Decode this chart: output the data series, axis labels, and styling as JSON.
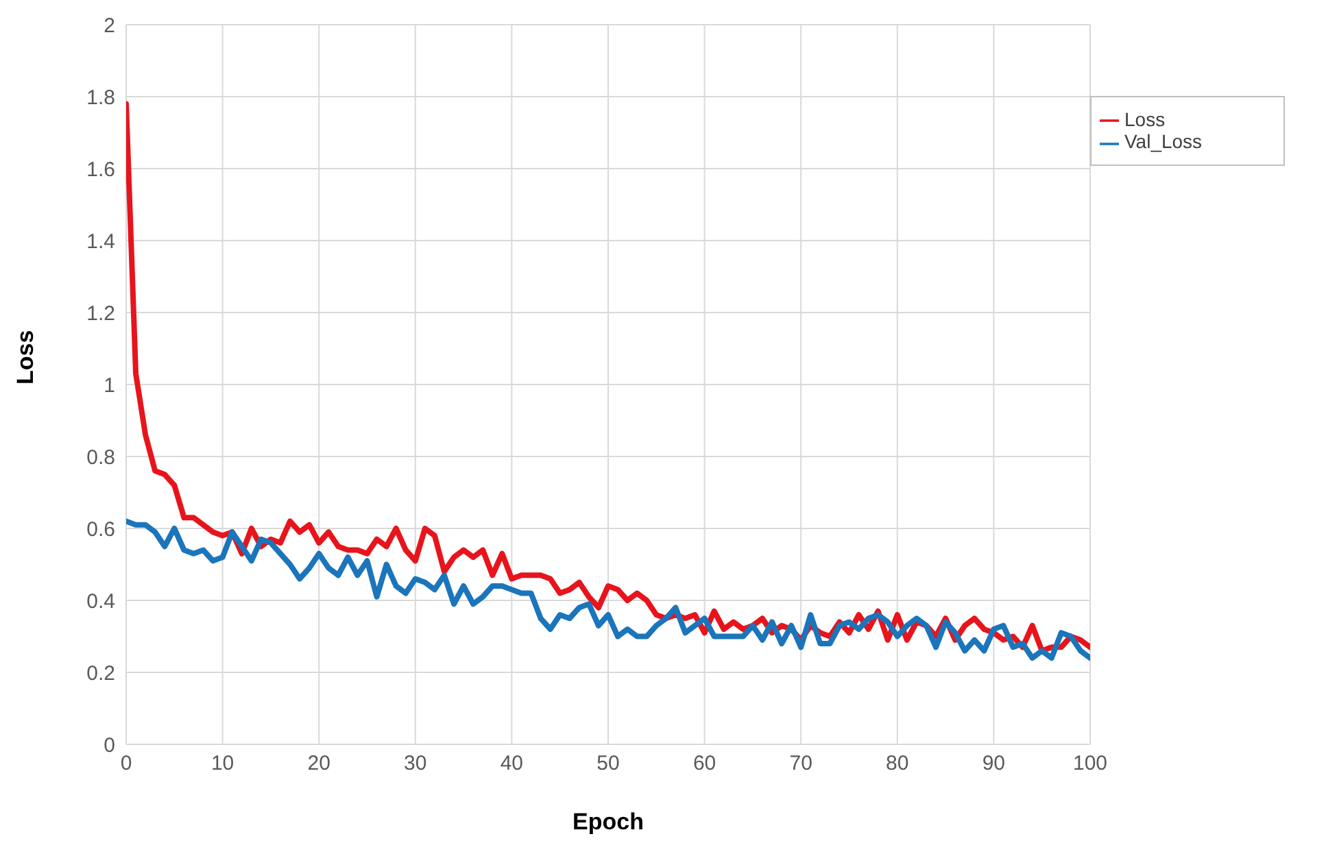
{
  "chart_data": {
    "type": "line",
    "xlabel": "Epoch",
    "ylabel": "Loss",
    "x": [
      0,
      1,
      2,
      3,
      4,
      5,
      6,
      7,
      8,
      9,
      10,
      11,
      12,
      13,
      14,
      15,
      16,
      17,
      18,
      19,
      20,
      21,
      22,
      23,
      24,
      25,
      26,
      27,
      28,
      29,
      30,
      31,
      32,
      33,
      34,
      35,
      36,
      37,
      38,
      39,
      40,
      41,
      42,
      43,
      44,
      45,
      46,
      47,
      48,
      49,
      50,
      51,
      52,
      53,
      54,
      55,
      56,
      57,
      58,
      59,
      60,
      61,
      62,
      63,
      64,
      65,
      66,
      67,
      68,
      69,
      70,
      71,
      72,
      73,
      74,
      75,
      76,
      77,
      78,
      79,
      80,
      81,
      82,
      83,
      84,
      85,
      86,
      87,
      88,
      89,
      90,
      91,
      92,
      93,
      94,
      95,
      96,
      97,
      98,
      99,
      100
    ],
    "series": [
      {
        "name": "Loss",
        "color": "#e8141c",
        "values": [
          1.78,
          1.03,
          0.86,
          0.76,
          0.75,
          0.72,
          0.63,
          0.63,
          0.61,
          0.59,
          0.58,
          0.59,
          0.53,
          0.6,
          0.55,
          0.57,
          0.56,
          0.62,
          0.59,
          0.61,
          0.56,
          0.59,
          0.55,
          0.54,
          0.54,
          0.53,
          0.57,
          0.55,
          0.6,
          0.54,
          0.51,
          0.6,
          0.58,
          0.48,
          0.52,
          0.54,
          0.52,
          0.54,
          0.47,
          0.53,
          0.46,
          0.47,
          0.47,
          0.47,
          0.46,
          0.42,
          0.43,
          0.45,
          0.41,
          0.38,
          0.44,
          0.43,
          0.4,
          0.42,
          0.4,
          0.36,
          0.35,
          0.36,
          0.35,
          0.36,
          0.31,
          0.37,
          0.32,
          0.34,
          0.32,
          0.33,
          0.35,
          0.31,
          0.33,
          0.32,
          0.29,
          0.33,
          0.31,
          0.3,
          0.34,
          0.31,
          0.36,
          0.32,
          0.37,
          0.29,
          0.36,
          0.29,
          0.34,
          0.33,
          0.3,
          0.35,
          0.29,
          0.33,
          0.35,
          0.32,
          0.31,
          0.29,
          0.3,
          0.27,
          0.33,
          0.26,
          0.27,
          0.27,
          0.3,
          0.29,
          0.27
        ]
      },
      {
        "name": "Val_Loss",
        "color": "#1b75bb",
        "values": [
          0.62,
          0.61,
          0.61,
          0.59,
          0.55,
          0.6,
          0.54,
          0.53,
          0.54,
          0.51,
          0.52,
          0.59,
          0.55,
          0.51,
          0.57,
          0.56,
          0.53,
          0.5,
          0.46,
          0.49,
          0.53,
          0.49,
          0.47,
          0.52,
          0.47,
          0.51,
          0.41,
          0.5,
          0.44,
          0.42,
          0.46,
          0.45,
          0.43,
          0.47,
          0.39,
          0.44,
          0.39,
          0.41,
          0.44,
          0.44,
          0.43,
          0.42,
          0.42,
          0.35,
          0.32,
          0.36,
          0.35,
          0.38,
          0.39,
          0.33,
          0.36,
          0.3,
          0.32,
          0.3,
          0.3,
          0.33,
          0.35,
          0.38,
          0.31,
          0.33,
          0.35,
          0.3,
          0.3,
          0.3,
          0.3,
          0.33,
          0.29,
          0.34,
          0.28,
          0.33,
          0.27,
          0.36,
          0.28,
          0.28,
          0.33,
          0.34,
          0.32,
          0.35,
          0.36,
          0.34,
          0.3,
          0.33,
          0.35,
          0.33,
          0.27,
          0.34,
          0.31,
          0.26,
          0.29,
          0.26,
          0.32,
          0.33,
          0.27,
          0.28,
          0.24,
          0.26,
          0.24,
          0.31,
          0.3,
          0.26,
          0.24
        ]
      }
    ],
    "xlim": [
      0,
      100
    ],
    "xticks": [
      0,
      10,
      20,
      30,
      40,
      50,
      60,
      70,
      80,
      90,
      100
    ],
    "ylim": [
      0,
      2
    ],
    "yticks": [
      0,
      0.2,
      0.4,
      0.6,
      0.8,
      1,
      1.2,
      1.4,
      1.6,
      1.8,
      2
    ],
    "grid": true,
    "legend": "top right",
    "marker": "none",
    "line_style": "solid"
  }
}
